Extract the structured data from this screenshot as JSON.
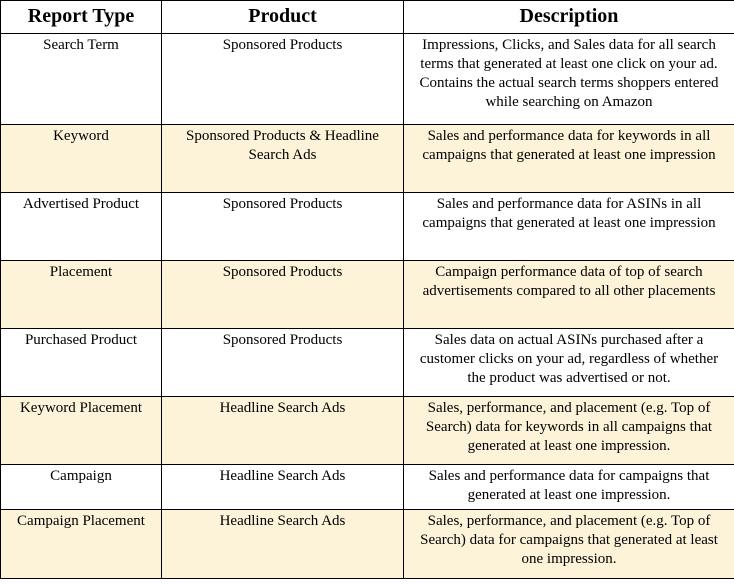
{
  "headers": [
    "Report Type",
    "Product",
    "Description"
  ],
  "rows": [
    {
      "report_type": "Search Term",
      "product": "Sponsored Products",
      "description": "Impressions, Clicks, and Sales data for all search terms that generated at least one click on your ad. Contains the actual search terms shoppers entered while searching on Amazon"
    },
    {
      "report_type": "Keyword",
      "product": "Sponsored Products & Headline Search Ads",
      "description": "Sales and performance data for keywords in all campaigns that generated at least one impression"
    },
    {
      "report_type": "Advertised Product",
      "product": "Sponsored Products",
      "description": "Sales and performance data for ASINs in all campaigns that generated at least one impression"
    },
    {
      "report_type": "Placement",
      "product": "Sponsored Products",
      "description": "Campaign performance data of top of search advertisements compared to all other placements"
    },
    {
      "report_type": "Purchased Product",
      "product": "Sponsored Products",
      "description": "Sales data on actual ASINs purchased after a customer clicks on your ad, regardless of whether the product was advertised or not."
    },
    {
      "report_type": "Keyword Placement",
      "product": "Headline Search Ads",
      "description": "Sales, performance, and placement (e.g. Top of Search) data for keywords in all campaigns that generated at least one impression."
    },
    {
      "report_type": "Campaign",
      "product": "Headline Search Ads",
      "description": "Sales and performance data for campaigns that generated at least one impression."
    },
    {
      "report_type": "Campaign Placement",
      "product": "Headline Search Ads",
      "description": "Sales, performance, and placement (e.g. Top of Search) data for campaigns that generated at least one impression."
    }
  ],
  "colors": {
    "band_alternate": "#fdf3d9",
    "band_plain": "#ffffff",
    "border": "#000000"
  }
}
